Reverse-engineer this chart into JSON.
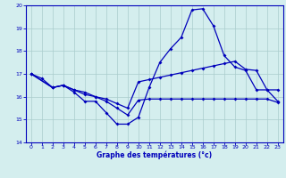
{
  "xlabel": "Graphe des températures (°c)",
  "bg_color": "#d4eeee",
  "line_color": "#0000bb",
  "grid_color": "#aacccc",
  "ylim": [
    14,
    20
  ],
  "xlim": [
    -0.5,
    23.5
  ],
  "yticks": [
    14,
    15,
    16,
    17,
    18,
    19,
    20
  ],
  "xticks": [
    0,
    1,
    2,
    3,
    4,
    5,
    6,
    7,
    8,
    9,
    10,
    11,
    12,
    13,
    14,
    15,
    16,
    17,
    18,
    19,
    20,
    21,
    22,
    23
  ],
  "line1_x": [
    0,
    1,
    2,
    3,
    4,
    5,
    6,
    7,
    8,
    9,
    10,
    11,
    12,
    13,
    14,
    15,
    16,
    17,
    18,
    19,
    20,
    21,
    22,
    23
  ],
  "line1_y": [
    17.0,
    16.8,
    16.4,
    16.5,
    16.2,
    15.8,
    15.8,
    15.3,
    14.8,
    14.8,
    15.1,
    16.4,
    17.5,
    18.1,
    18.6,
    19.8,
    19.85,
    19.1,
    17.8,
    17.3,
    17.15,
    16.3,
    16.3,
    15.8
  ],
  "line2_x": [
    0,
    2,
    3,
    4,
    5,
    6,
    7,
    8,
    9,
    10,
    11,
    12,
    13,
    14,
    15,
    16,
    17,
    18,
    19,
    20,
    21,
    22,
    23
  ],
  "line2_y": [
    17.0,
    16.4,
    16.5,
    16.3,
    16.2,
    16.0,
    15.8,
    15.5,
    15.2,
    15.85,
    15.9,
    15.9,
    15.9,
    15.9,
    15.9,
    15.9,
    15.9,
    15.9,
    15.9,
    15.9,
    15.9,
    15.9,
    15.75
  ],
  "line3_x": [
    0,
    2,
    3,
    4,
    5,
    6,
    7,
    8,
    9,
    10,
    11,
    12,
    13,
    14,
    15,
    16,
    17,
    18,
    19,
    20,
    21,
    22,
    23
  ],
  "line3_y": [
    17.0,
    16.4,
    16.5,
    16.3,
    16.1,
    16.0,
    15.9,
    15.7,
    15.5,
    16.65,
    16.75,
    16.85,
    16.95,
    17.05,
    17.15,
    17.25,
    17.35,
    17.45,
    17.55,
    17.2,
    17.15,
    16.3,
    16.3
  ]
}
